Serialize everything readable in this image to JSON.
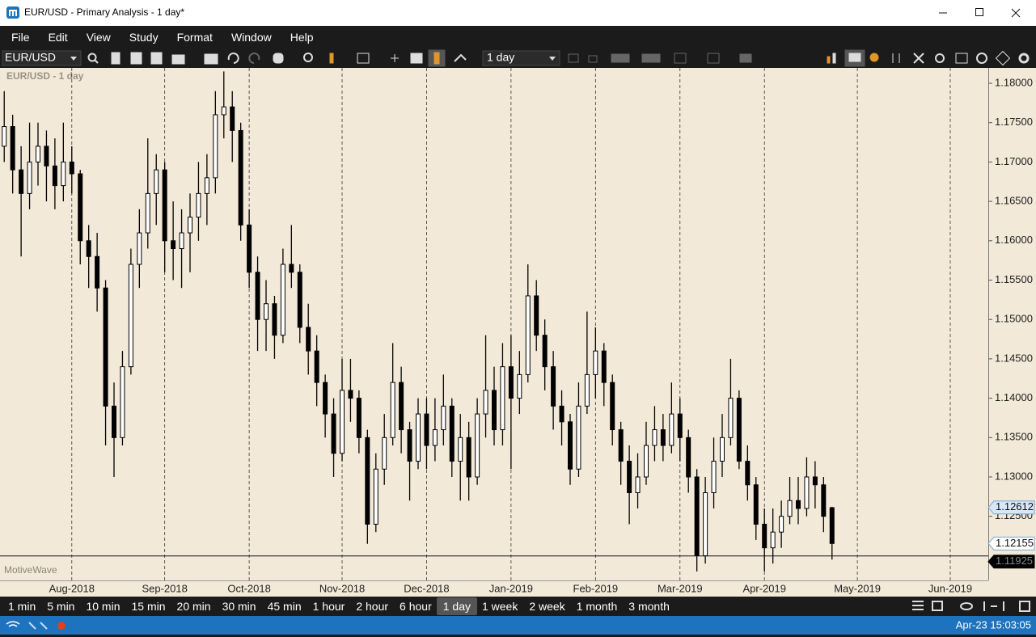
{
  "window": {
    "title": "EUR/USD - Primary Analysis - 1 day*",
    "menu": [
      "File",
      "Edit",
      "View",
      "Study",
      "Format",
      "Window",
      "Help"
    ],
    "symbol": "EUR/USD",
    "timeframe": "1 day",
    "timeframes": [
      "1 min",
      "5 min",
      "10 min",
      "15 min",
      "20 min",
      "30 min",
      "45 min",
      "1 hour",
      "2 hour",
      "6 hour",
      "1 day",
      "1 week",
      "2 week",
      "1 month",
      "3 month"
    ],
    "status_time": "Apr-23 15:03:05"
  },
  "chart_data": {
    "type": "candlestick",
    "title": "EUR/USD - 1 day",
    "watermark": "MotiveWave",
    "up_color": "#ffffff",
    "down_color": "#000000",
    "month_lines": true,
    "categories": [
      null,
      null,
      null,
      null,
      null,
      null,
      null,
      null,
      "Aug-2018",
      null,
      null,
      null,
      null,
      null,
      null,
      null,
      null,
      null,
      null,
      "Sep-2018",
      null,
      null,
      null,
      null,
      null,
      null,
      null,
      null,
      null,
      "Oct-2018",
      null,
      null,
      null,
      null,
      null,
      null,
      null,
      null,
      null,
      null,
      "Nov-2018",
      null,
      null,
      null,
      null,
      null,
      null,
      null,
      null,
      null,
      "Dec-2018",
      null,
      null,
      null,
      null,
      null,
      null,
      null,
      null,
      null,
      "Jan-2019",
      null,
      null,
      null,
      null,
      null,
      null,
      null,
      null,
      null,
      "Feb-2019",
      null,
      null,
      null,
      null,
      null,
      null,
      null,
      null,
      null,
      "Mar-2019",
      null,
      null,
      null,
      null,
      null,
      null,
      null,
      null,
      null,
      "Apr-2019",
      null,
      null,
      null,
      null,
      null,
      null,
      null,
      null,
      null,
      null,
      "May-2019",
      null,
      null,
      null,
      null,
      null,
      null,
      null,
      null,
      null,
      null,
      "Jun-2019",
      null,
      null,
      null,
      null
    ],
    "candles": [
      [
        1.172,
        1.179,
        1.17,
        1.1745
      ],
      [
        1.1745,
        1.176,
        1.166,
        1.169
      ],
      [
        1.169,
        1.172,
        1.158,
        1.166
      ],
      [
        1.166,
        1.175,
        1.164,
        1.17
      ],
      [
        1.17,
        1.175,
        1.167,
        1.172
      ],
      [
        1.172,
        1.174,
        1.165,
        1.1695
      ],
      [
        1.1695,
        1.173,
        1.164,
        1.167
      ],
      [
        1.167,
        1.175,
        1.165,
        1.17
      ],
      [
        1.17,
        1.172,
        1.166,
        1.1685
      ],
      [
        1.1685,
        1.169,
        1.157,
        1.16
      ],
      [
        1.16,
        1.162,
        1.154,
        1.158
      ],
      [
        1.158,
        1.161,
        1.151,
        1.154
      ],
      [
        1.154,
        1.155,
        1.134,
        1.139
      ],
      [
        1.139,
        1.142,
        1.13,
        1.135
      ],
      [
        1.135,
        1.146,
        1.134,
        1.144
      ],
      [
        1.144,
        1.159,
        1.143,
        1.157
      ],
      [
        1.157,
        1.164,
        1.154,
        1.161
      ],
      [
        1.161,
        1.173,
        1.159,
        1.166
      ],
      [
        1.166,
        1.171,
        1.162,
        1.169
      ],
      [
        1.169,
        1.17,
        1.156,
        1.16
      ],
      [
        1.16,
        1.165,
        1.155,
        1.159
      ],
      [
        1.159,
        1.164,
        1.154,
        1.161
      ],
      [
        1.161,
        1.166,
        1.156,
        1.163
      ],
      [
        1.163,
        1.17,
        1.16,
        1.166
      ],
      [
        1.166,
        1.171,
        1.162,
        1.168
      ],
      [
        1.168,
        1.179,
        1.166,
        1.176
      ],
      [
        1.176,
        1.1815,
        1.173,
        1.177
      ],
      [
        1.177,
        1.179,
        1.17,
        1.174
      ],
      [
        1.174,
        1.175,
        1.16,
        1.162
      ],
      [
        1.162,
        1.164,
        1.154,
        1.156
      ],
      [
        1.156,
        1.158,
        1.146,
        1.15
      ],
      [
        1.15,
        1.155,
        1.146,
        1.152
      ],
      [
        1.152,
        1.153,
        1.145,
        1.148
      ],
      [
        1.148,
        1.159,
        1.147,
        1.157
      ],
      [
        1.157,
        1.162,
        1.154,
        1.156
      ],
      [
        1.156,
        1.157,
        1.147,
        1.149
      ],
      [
        1.149,
        1.152,
        1.143,
        1.146
      ],
      [
        1.146,
        1.148,
        1.139,
        1.142
      ],
      [
        1.142,
        1.143,
        1.135,
        1.138
      ],
      [
        1.138,
        1.14,
        1.13,
        1.133
      ],
      [
        1.133,
        1.145,
        1.132,
        1.141
      ],
      [
        1.141,
        1.145,
        1.137,
        1.14
      ],
      [
        1.14,
        1.141,
        1.133,
        1.135
      ],
      [
        1.135,
        1.136,
        1.1215,
        1.124
      ],
      [
        1.124,
        1.133,
        1.123,
        1.131
      ],
      [
        1.131,
        1.138,
        1.129,
        1.135
      ],
      [
        1.135,
        1.147,
        1.134,
        1.142
      ],
      [
        1.142,
        1.144,
        1.133,
        1.136
      ],
      [
        1.136,
        1.137,
        1.127,
        1.132
      ],
      [
        1.132,
        1.14,
        1.131,
        1.138
      ],
      [
        1.138,
        1.14,
        1.131,
        1.134
      ],
      [
        1.134,
        1.14,
        1.132,
        1.136
      ],
      [
        1.136,
        1.143,
        1.134,
        1.139
      ],
      [
        1.139,
        1.14,
        1.13,
        1.132
      ],
      [
        1.132,
        1.138,
        1.127,
        1.135
      ],
      [
        1.135,
        1.137,
        1.127,
        1.13
      ],
      [
        1.13,
        1.14,
        1.129,
        1.138
      ],
      [
        1.138,
        1.148,
        1.135,
        1.141
      ],
      [
        1.141,
        1.144,
        1.134,
        1.136
      ],
      [
        1.136,
        1.147,
        1.134,
        1.144
      ],
      [
        1.144,
        1.148,
        1.131,
        1.14
      ],
      [
        1.14,
        1.146,
        1.138,
        1.143
      ],
      [
        1.143,
        1.157,
        1.142,
        1.153
      ],
      [
        1.153,
        1.155,
        1.146,
        1.148
      ],
      [
        1.148,
        1.15,
        1.141,
        1.144
      ],
      [
        1.144,
        1.146,
        1.136,
        1.139
      ],
      [
        1.139,
        1.141,
        1.134,
        1.137
      ],
      [
        1.137,
        1.138,
        1.129,
        1.131
      ],
      [
        1.131,
        1.142,
        1.13,
        1.139
      ],
      [
        1.139,
        1.151,
        1.138,
        1.143
      ],
      [
        1.143,
        1.149,
        1.14,
        1.146
      ],
      [
        1.146,
        1.147,
        1.139,
        1.142
      ],
      [
        1.142,
        1.143,
        1.134,
        1.136
      ],
      [
        1.136,
        1.137,
        1.129,
        1.132
      ],
      [
        1.132,
        1.134,
        1.124,
        1.128
      ],
      [
        1.128,
        1.133,
        1.126,
        1.13
      ],
      [
        1.13,
        1.137,
        1.129,
        1.134
      ],
      [
        1.134,
        1.139,
        1.132,
        1.136
      ],
      [
        1.136,
        1.138,
        1.132,
        1.134
      ],
      [
        1.134,
        1.142,
        1.133,
        1.138
      ],
      [
        1.138,
        1.14,
        1.132,
        1.135
      ],
      [
        1.135,
        1.136,
        1.128,
        1.13
      ],
      [
        1.13,
        1.131,
        1.118,
        1.12
      ],
      [
        1.12,
        1.13,
        1.119,
        1.128
      ],
      [
        1.128,
        1.135,
        1.126,
        1.132
      ],
      [
        1.132,
        1.138,
        1.13,
        1.135
      ],
      [
        1.135,
        1.145,
        1.134,
        1.14
      ],
      [
        1.14,
        1.141,
        1.131,
        1.132
      ],
      [
        1.132,
        1.134,
        1.127,
        1.129
      ],
      [
        1.129,
        1.13,
        1.122,
        1.124
      ],
      [
        1.124,
        1.126,
        1.118,
        1.121
      ],
      [
        1.121,
        1.126,
        1.119,
        1.123
      ],
      [
        1.123,
        1.127,
        1.121,
        1.125
      ],
      [
        1.125,
        1.13,
        1.124,
        1.127
      ],
      [
        1.127,
        1.13,
        1.124,
        1.126
      ],
      [
        1.126,
        1.1325,
        1.125,
        1.13
      ],
      [
        1.13,
        1.132,
        1.126,
        1.129
      ],
      [
        1.129,
        1.13,
        1.123,
        1.125
      ],
      [
        1.1261,
        1.1262,
        1.1195,
        1.12155
      ],
      null,
      null,
      null,
      null,
      null,
      null,
      null,
      null,
      null,
      null,
      null,
      null,
      null,
      null,
      null,
      null,
      null,
      null
    ],
    "ylim": [
      1.11686,
      1.18195
    ],
    "yticks": [
      {
        "value": 1.125,
        "label": "1.12500"
      },
      {
        "value": 1.13,
        "label": "1.13000"
      },
      {
        "value": 1.135,
        "label": "1.13500"
      },
      {
        "value": 1.14,
        "label": "1.14000"
      },
      {
        "value": 1.145,
        "label": "1.14500"
      },
      {
        "value": 1.15,
        "label": "1.15000"
      },
      {
        "value": 1.155,
        "label": "1.15500"
      },
      {
        "value": 1.16,
        "label": "1.16000"
      },
      {
        "value": 1.165,
        "label": "1.16500"
      },
      {
        "value": 1.17,
        "label": "1.17000"
      },
      {
        "value": 1.175,
        "label": "1.17500"
      },
      {
        "value": 1.18,
        "label": "1.18000"
      }
    ],
    "price_markers": [
      {
        "value": 1.12612,
        "label": "1.12612",
        "color": "#d7e7f7"
      },
      {
        "value": 1.12155,
        "label": "1.12155",
        "color": "#ffffff"
      }
    ],
    "crosshair": {
      "value": 1.11925,
      "label": "1.11925"
    }
  }
}
